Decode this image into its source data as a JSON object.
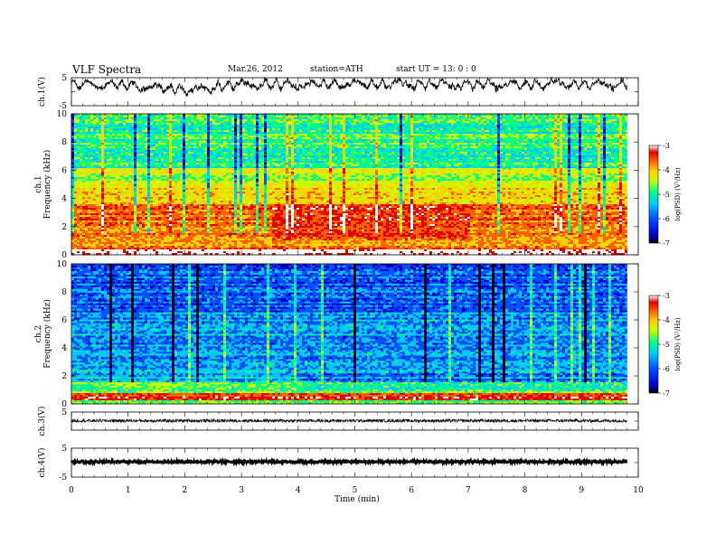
{
  "header": {
    "title": "VLF  Spectra",
    "date": "Mar.26, 2012",
    "station": "station=ATH",
    "start": "start  UT =   13: 0  : 0"
  },
  "colors": {
    "colormap": [
      "#000000",
      "#0000c8",
      "#0050ff",
      "#00c8ff",
      "#00ff88",
      "#c8ff00",
      "#ffd000",
      "#ff6000",
      "#e00000",
      "#ffffff"
    ]
  },
  "chart_data": [
    {
      "type": "line",
      "id": "ch1",
      "ylabel": "ch.1(V)",
      "ytick_labels": [
        "5",
        "-5"
      ],
      "ylim": [
        -5,
        5
      ],
      "xlim": [
        0,
        10
      ]
    },
    {
      "type": "heatmap",
      "id": "spec1",
      "ylabel": "ch.1",
      "ylabel2": "Frequency  (kHz)",
      "ytick_labels": [
        "0",
        "2",
        "4",
        "6",
        "8",
        "10"
      ],
      "ylim": [
        0,
        10
      ],
      "xlim": [
        0,
        10
      ],
      "data_end_min": 9.8,
      "colorbar": {
        "label": "log(PSD) (V²/Hz)",
        "range": [
          -7,
          -3
        ],
        "tick_labels": [
          "-3",
          "-4",
          "-5",
          "-6",
          "-7"
        ]
      }
    },
    {
      "type": "heatmap",
      "id": "spec2",
      "ylabel": "ch.2",
      "ylabel2": "Frequency  (kHz)",
      "ytick_labels": [
        "0",
        "2",
        "4",
        "6",
        "8",
        "10"
      ],
      "ylim": [
        0,
        10
      ],
      "xlim": [
        0,
        10
      ],
      "data_end_min": 9.8,
      "colorbar": {
        "label": "log(PSD) (V²/Hz)",
        "range": [
          -7,
          -3
        ],
        "tick_labels": [
          "-3",
          "-4",
          "-5",
          "-6",
          "-7"
        ]
      }
    },
    {
      "type": "line",
      "id": "ch3",
      "ylabel": "ch.3(V)",
      "ytick_labels": [
        "5"
      ],
      "ylim": [
        -5,
        5
      ],
      "xlim": [
        0,
        10
      ]
    },
    {
      "type": "line",
      "id": "ch4",
      "ylabel": "ch.4(V)",
      "ytick_labels": [
        "5",
        "-5"
      ],
      "ylim": [
        -5,
        5
      ],
      "xlim": [
        0,
        10
      ]
    }
  ],
  "x_axis": {
    "label": "Time  (min)",
    "tick_labels": [
      "0",
      "1",
      "2",
      "3",
      "4",
      "5",
      "6",
      "7",
      "8",
      "9",
      "10"
    ],
    "xlim": [
      0,
      10
    ]
  }
}
